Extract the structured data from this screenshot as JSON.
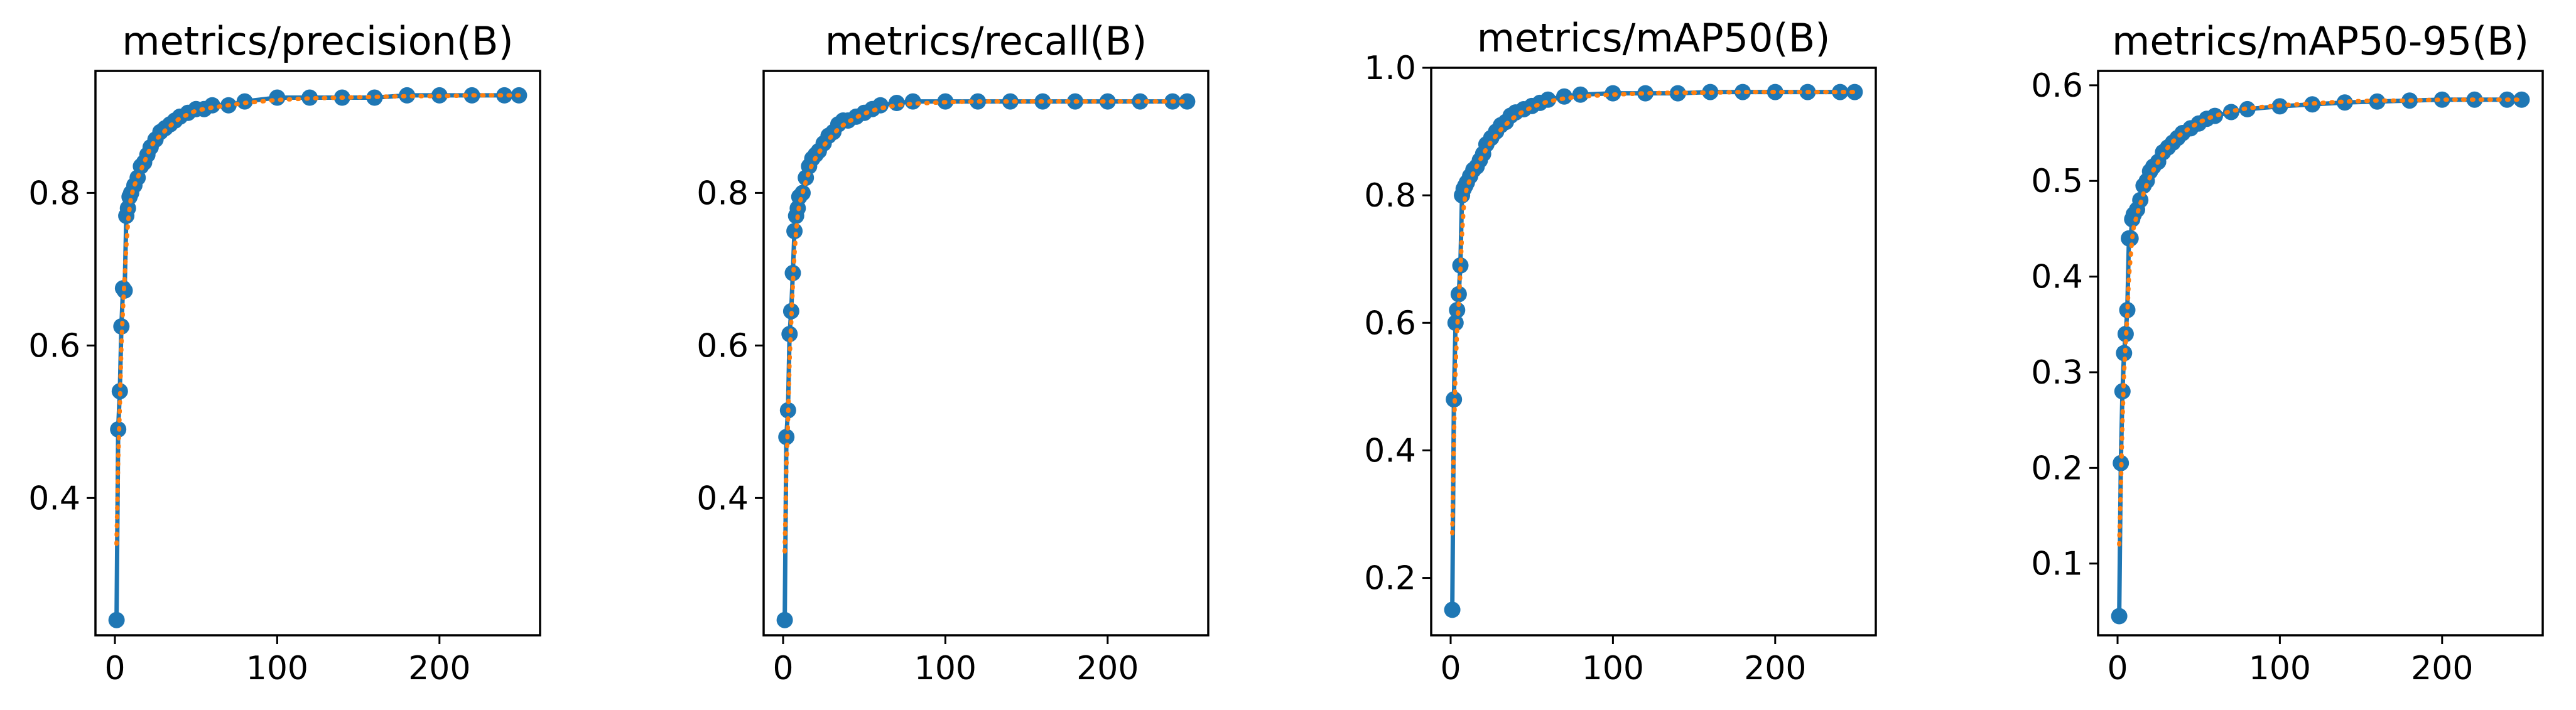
{
  "colors": {
    "points": "#1f77b4",
    "smooth": "#ff7f0e",
    "axes": "#000000"
  },
  "chart_data": [
    {
      "type": "line",
      "title": "metrics/precision(B)",
      "xlabel": "",
      "ylabel": "",
      "xlim": [
        -12,
        262
      ],
      "ylim": [
        0.22,
        0.96
      ],
      "xticks": [
        0,
        100,
        200
      ],
      "yticks": [
        0.4,
        0.6,
        0.8
      ],
      "xticklabels": [
        "0",
        "100",
        "200"
      ],
      "yticklabels": [
        "0.4",
        "0.6",
        "0.8"
      ],
      "grid": false,
      "legend": "none",
      "series": [
        {
          "style": "line-with-markers",
          "x": [
            1,
            2,
            3,
            4,
            5,
            6,
            7,
            8,
            9,
            10,
            12,
            14,
            16,
            18,
            20,
            22,
            25,
            28,
            31,
            34,
            37,
            40,
            45,
            50,
            55,
            60,
            70,
            80,
            100,
            120,
            140,
            160,
            180,
            200,
            220,
            240,
            249
          ],
          "y": [
            0.24,
            0.49,
            0.54,
            0.625,
            0.675,
            0.672,
            0.77,
            0.78,
            0.795,
            0.8,
            0.81,
            0.82,
            0.835,
            0.84,
            0.85,
            0.86,
            0.87,
            0.88,
            0.885,
            0.89,
            0.895,
            0.9,
            0.905,
            0.91,
            0.91,
            0.915,
            0.915,
            0.92,
            0.925,
            0.925,
            0.925,
            0.925,
            0.928,
            0.928,
            0.928,
            0.928,
            0.928
          ]
        },
        {
          "style": "dotted",
          "x": [
            1,
            2,
            3,
            4,
            5,
            6,
            7,
            8,
            9,
            10,
            12,
            14,
            16,
            18,
            20,
            22,
            25,
            28,
            31,
            34,
            37,
            40,
            45,
            50,
            55,
            60,
            70,
            80,
            100,
            120,
            140,
            160,
            180,
            200,
            220,
            240,
            249
          ],
          "y": [
            0.34,
            0.45,
            0.52,
            0.6,
            0.65,
            0.69,
            0.73,
            0.76,
            0.78,
            0.795,
            0.81,
            0.82,
            0.83,
            0.84,
            0.85,
            0.86,
            0.87,
            0.875,
            0.882,
            0.888,
            0.893,
            0.898,
            0.903,
            0.908,
            0.91,
            0.912,
            0.915,
            0.918,
            0.922,
            0.924,
            0.925,
            0.926,
            0.927,
            0.927,
            0.928,
            0.928,
            0.928
          ]
        }
      ]
    },
    {
      "type": "line",
      "title": "metrics/recall(B)",
      "xlabel": "",
      "ylabel": "",
      "xlim": [
        -12,
        262
      ],
      "ylim": [
        0.22,
        0.96
      ],
      "xticks": [
        0,
        100,
        200
      ],
      "yticks": [
        0.4,
        0.6,
        0.8
      ],
      "xticklabels": [
        "0",
        "100",
        "200"
      ],
      "yticklabels": [
        "0.4",
        "0.6",
        "0.8"
      ],
      "grid": false,
      "legend": "none",
      "series": [
        {
          "style": "line-with-markers",
          "x": [
            1,
            2,
            3,
            4,
            5,
            6,
            7,
            8,
            9,
            10,
            12,
            14,
            16,
            18,
            20,
            22,
            25,
            28,
            31,
            34,
            37,
            40,
            45,
            50,
            55,
            60,
            70,
            80,
            100,
            120,
            140,
            160,
            180,
            200,
            220,
            240,
            249
          ],
          "y": [
            0.24,
            0.48,
            0.515,
            0.615,
            0.645,
            0.695,
            0.75,
            0.77,
            0.78,
            0.795,
            0.8,
            0.82,
            0.835,
            0.845,
            0.85,
            0.855,
            0.865,
            0.875,
            0.88,
            0.89,
            0.895,
            0.895,
            0.9,
            0.905,
            0.91,
            0.915,
            0.918,
            0.92,
            0.92,
            0.92,
            0.92,
            0.92,
            0.92,
            0.92,
            0.92,
            0.92,
            0.92
          ]
        },
        {
          "style": "dotted",
          "x": [
            1,
            2,
            3,
            4,
            5,
            6,
            7,
            8,
            9,
            10,
            12,
            14,
            16,
            18,
            20,
            22,
            25,
            28,
            31,
            34,
            37,
            40,
            45,
            50,
            55,
            60,
            70,
            80,
            100,
            120,
            140,
            160,
            180,
            200,
            220,
            240,
            249
          ],
          "y": [
            0.33,
            0.44,
            0.5,
            0.58,
            0.63,
            0.68,
            0.72,
            0.75,
            0.77,
            0.785,
            0.8,
            0.815,
            0.828,
            0.838,
            0.846,
            0.853,
            0.862,
            0.87,
            0.877,
            0.884,
            0.889,
            0.893,
            0.899,
            0.904,
            0.908,
            0.911,
            0.915,
            0.917,
            0.919,
            0.92,
            0.92,
            0.92,
            0.92,
            0.92,
            0.92,
            0.92,
            0.92
          ]
        }
      ]
    },
    {
      "type": "line",
      "title": "metrics/mAP50(B)",
      "xlabel": "",
      "ylabel": "",
      "xlim": [
        -12,
        262
      ],
      "ylim": [
        0.11,
        1.0
      ],
      "xticks": [
        0,
        100,
        200
      ],
      "yticks": [
        0.2,
        0.4,
        0.6,
        0.8,
        1.0
      ],
      "xticklabels": [
        "0",
        "100",
        "200"
      ],
      "yticklabels": [
        "0.2",
        "0.4",
        "0.6",
        "0.8",
        "1.0"
      ],
      "grid": false,
      "legend": "none",
      "series": [
        {
          "style": "line-with-markers",
          "x": [
            1,
            2,
            3,
            4,
            5,
            6,
            7,
            8,
            9,
            10,
            12,
            14,
            16,
            18,
            20,
            22,
            25,
            28,
            31,
            34,
            37,
            40,
            45,
            50,
            55,
            60,
            70,
            80,
            100,
            120,
            140,
            160,
            180,
            200,
            220,
            240,
            249
          ],
          "y": [
            0.15,
            0.48,
            0.6,
            0.62,
            0.645,
            0.69,
            0.8,
            0.81,
            0.815,
            0.82,
            0.83,
            0.84,
            0.845,
            0.855,
            0.865,
            0.88,
            0.89,
            0.9,
            0.91,
            0.915,
            0.925,
            0.93,
            0.935,
            0.94,
            0.945,
            0.95,
            0.955,
            0.958,
            0.96,
            0.96,
            0.96,
            0.962,
            0.962,
            0.962,
            0.962,
            0.962,
            0.962
          ]
        },
        {
          "style": "dotted",
          "x": [
            1,
            2,
            3,
            4,
            5,
            6,
            7,
            8,
            9,
            10,
            12,
            14,
            16,
            18,
            20,
            22,
            25,
            28,
            31,
            34,
            37,
            40,
            45,
            50,
            55,
            60,
            70,
            80,
            100,
            120,
            140,
            160,
            180,
            200,
            220,
            240,
            249
          ],
          "y": [
            0.27,
            0.42,
            0.53,
            0.59,
            0.63,
            0.68,
            0.74,
            0.78,
            0.8,
            0.812,
            0.825,
            0.835,
            0.845,
            0.855,
            0.864,
            0.873,
            0.884,
            0.894,
            0.903,
            0.911,
            0.918,
            0.924,
            0.932,
            0.938,
            0.943,
            0.947,
            0.952,
            0.955,
            0.958,
            0.96,
            0.961,
            0.961,
            0.962,
            0.962,
            0.962,
            0.962,
            0.962
          ]
        }
      ]
    },
    {
      "type": "line",
      "title": "metrics/mAP50-95(B)",
      "xlabel": "",
      "ylabel": "",
      "xlim": [
        -12,
        262
      ],
      "ylim": [
        0.025,
        0.615
      ],
      "xticks": [
        0,
        100,
        200
      ],
      "yticks": [
        0.1,
        0.2,
        0.3,
        0.4,
        0.5,
        0.6
      ],
      "xticklabels": [
        "0",
        "100",
        "200"
      ],
      "yticklabels": [
        "0.1",
        "0.2",
        "0.3",
        "0.4",
        "0.5",
        "0.6"
      ],
      "grid": false,
      "legend": "none",
      "series": [
        {
          "style": "line-with-markers",
          "x": [
            1,
            2,
            3,
            4,
            5,
            6,
            7,
            8,
            9,
            10,
            12,
            14,
            16,
            18,
            20,
            22,
            25,
            28,
            31,
            34,
            37,
            40,
            45,
            50,
            55,
            60,
            70,
            80,
            100,
            120,
            140,
            160,
            180,
            200,
            220,
            240,
            249
          ],
          "y": [
            0.045,
            0.205,
            0.28,
            0.32,
            0.34,
            0.365,
            0.44,
            0.44,
            0.46,
            0.465,
            0.47,
            0.48,
            0.495,
            0.5,
            0.51,
            0.515,
            0.52,
            0.53,
            0.535,
            0.54,
            0.545,
            0.55,
            0.555,
            0.56,
            0.565,
            0.568,
            0.572,
            0.575,
            0.578,
            0.58,
            0.582,
            0.583,
            0.584,
            0.585,
            0.585,
            0.585,
            0.585
          ]
        },
        {
          "style": "dotted",
          "x": [
            1,
            2,
            3,
            4,
            5,
            6,
            7,
            8,
            9,
            10,
            12,
            14,
            16,
            18,
            20,
            22,
            25,
            28,
            31,
            34,
            37,
            40,
            45,
            50,
            55,
            60,
            70,
            80,
            100,
            120,
            140,
            160,
            180,
            200,
            220,
            240,
            249
          ],
          "y": [
            0.12,
            0.18,
            0.25,
            0.3,
            0.33,
            0.36,
            0.4,
            0.42,
            0.44,
            0.452,
            0.465,
            0.476,
            0.487,
            0.496,
            0.504,
            0.511,
            0.52,
            0.528,
            0.535,
            0.541,
            0.546,
            0.55,
            0.556,
            0.561,
            0.565,
            0.568,
            0.573,
            0.576,
            0.579,
            0.581,
            0.583,
            0.584,
            0.584,
            0.585,
            0.585,
            0.585,
            0.585
          ]
        }
      ]
    }
  ]
}
